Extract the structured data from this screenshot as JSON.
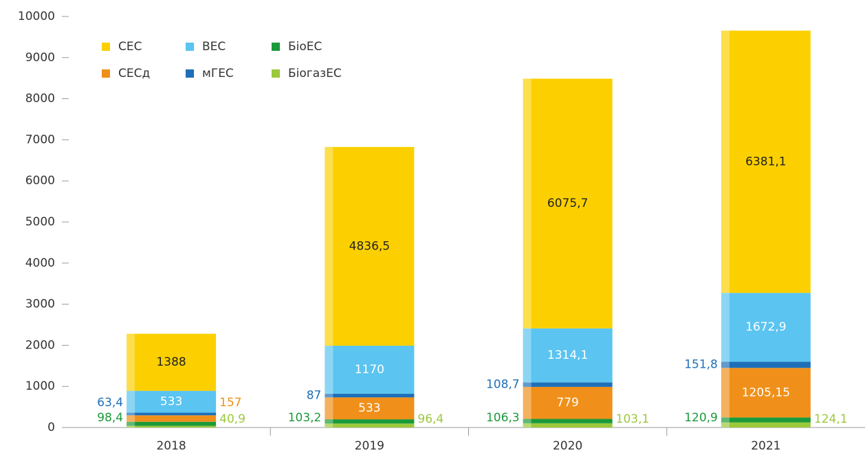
{
  "chart_data": {
    "type": "stacked_bar",
    "categories": [
      "2018",
      "2019",
      "2020",
      "2021"
    ],
    "ylim": [
      0,
      10000
    ],
    "yticks": [
      0,
      1000,
      2000,
      3000,
      4000,
      5000,
      6000,
      7000,
      8000,
      9000,
      10000
    ],
    "series": [
      {
        "name": "БіогазЕС",
        "color": "#9cc83c",
        "values": [
          40.9,
          96.4,
          103.1,
          124.1
        ],
        "value_labels": [
          "40,9",
          "96,4",
          "103,1",
          "124,1"
        ]
      },
      {
        "name": "БіоЕС",
        "color": "#1a9a3a",
        "values": [
          98.4,
          103.2,
          106.3,
          120.9
        ],
        "value_labels": [
          "98,4",
          "103,2",
          "106,3",
          "120,9"
        ]
      },
      {
        "name": "СЕСд",
        "color": "#f0901a",
        "values": [
          157,
          533,
          779,
          1205.15
        ],
        "value_labels": [
          "157",
          "533",
          "779",
          "1205,15"
        ]
      },
      {
        "name": "мГЕС",
        "color": "#1e6fb8",
        "values": [
          63.4,
          87,
          108.7,
          151.8
        ],
        "value_labels": [
          "63,4",
          "87",
          "108,7",
          "151,8"
        ]
      },
      {
        "name": "ВЕС",
        "color": "#5bc4f0",
        "values": [
          533,
          1170,
          1314.1,
          1672.9
        ],
        "value_labels": [
          "533",
          "1170",
          "1314,1",
          "1672,9"
        ]
      },
      {
        "name": "СЕС",
        "color": "#fcd000",
        "values": [
          1388,
          4836.5,
          6075.7,
          6381.1
        ],
        "value_labels": [
          "1388",
          "4836,5",
          "6075,7",
          "6381,1"
        ]
      }
    ]
  }
}
